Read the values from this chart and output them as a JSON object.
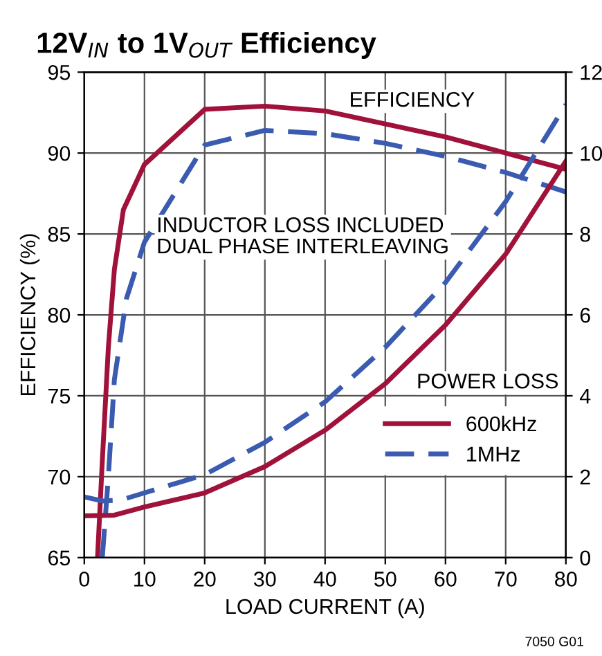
{
  "chart_data": {
    "type": "line",
    "title": "12V$_{IN}$ to 1V$_{OUT}$ Efficiency",
    "xlabel": "LOAD CURRENT (A)",
    "ylabel": "EFFICIENCY (%)",
    "annotations": [
      "EFFICIENCY",
      "INDUCTOR LOSS INCLUDED\nDUAL PHASE INTERLEAVING",
      "POWER LOSS",
      "7050 G01"
    ],
    "xlim": [
      0,
      80
    ],
    "xticks": [
      0,
      10,
      20,
      30,
      40,
      50,
      60,
      70,
      80
    ],
    "ylim": [
      65,
      95
    ],
    "yticks": [
      65,
      70,
      75,
      80,
      85,
      90,
      95
    ],
    "y2lim": [
      0,
      12
    ],
    "y2ticks": [
      0,
      2,
      4,
      6,
      8,
      10,
      12
    ],
    "grid": true,
    "legend": "bottom right",
    "series": [
      {
        "name": "600kHz",
        "color": "#a0123a",
        "line_style": "solid",
        "x": [
          2.2,
          3,
          4,
          5,
          6.5,
          10,
          20,
          30,
          40,
          50,
          60,
          70,
          80
        ],
        "values": [
          65,
          71,
          78,
          82.8,
          86.5,
          89.3,
          92.7,
          92.9,
          92.6,
          91.8,
          91,
          90,
          89
        ]
      },
      {
        "name": "1MHz",
        "color": "#3a5bb0",
        "line_style": "dashed",
        "x": [
          3,
          4,
          5,
          7,
          10,
          20,
          30,
          40,
          50,
          60,
          70,
          80
        ],
        "values": [
          65,
          70,
          76,
          81,
          84.5,
          90.5,
          91.4,
          91.2,
          90.6,
          89.8,
          88.8,
          87.6
        ]
      },
      {
        "color": "#a0123a",
        "line_style": "solid",
        "axis": "y2",
        "x": [
          0,
          5,
          10,
          20,
          30,
          40,
          50,
          60,
          70,
          80
        ],
        "values": [
          1.03,
          1.05,
          1.25,
          1.6,
          2.25,
          3.15,
          4.3,
          5.75,
          7.5,
          9.8
        ]
      },
      {
        "color": "#3a5bb0",
        "line_style": "dashed",
        "axis": "y2",
        "x": [
          0,
          3,
          6,
          10,
          20,
          30,
          40,
          50,
          60,
          70,
          80
        ],
        "values": [
          1.5,
          1.4,
          1.42,
          1.6,
          2.05,
          2.85,
          3.85,
          5.2,
          6.8,
          8.8,
          11.2
        ]
      }
    ]
  }
}
